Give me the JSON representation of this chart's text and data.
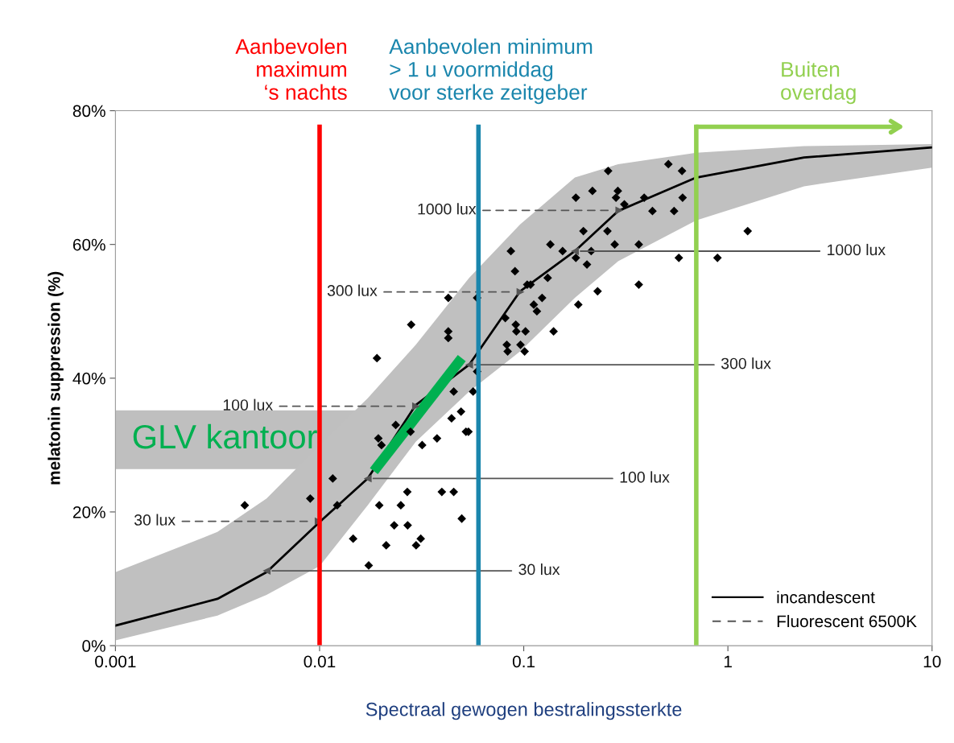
{
  "chart_data": {
    "type": "scatter",
    "xlabel": "Spectraal gewogen bestralingssterkte",
    "ylabel": "melatonin suppression (%)",
    "log": "x",
    "xlim": [
      0.001,
      10
    ],
    "xticks": [
      0.001,
      0.01,
      0.1,
      1,
      10
    ],
    "ylim": [
      0,
      80
    ],
    "yticks": [
      {
        "value": 0,
        "label": "0%"
      },
      {
        "value": 20,
        "label": "20%"
      },
      {
        "value": 40,
        "label": "40%"
      },
      {
        "value": 60,
        "label": "60%"
      },
      {
        "value": 80,
        "label": "80%"
      }
    ],
    "grid": false,
    "legend": "bottom right",
    "series": [
      {
        "name": "incandescent",
        "type": "line",
        "color": "#000000",
        "line_style": "solid",
        "x": [
          0.001,
          0.00316,
          0.0055,
          0.01,
          0.0172,
          0.0296,
          0.054,
          0.096,
          0.178,
          0.29,
          0.7,
          2.36,
          10
        ],
        "values": [
          3,
          7,
          11,
          18.5,
          25,
          36,
          42,
          53,
          59,
          65,
          70,
          73,
          74.5
        ],
        "lower": [
          0.8,
          4.5,
          7.6,
          11.9,
          21,
          30.5,
          38,
          44,
          52,
          57.5,
          63.6,
          68.7,
          71.5
        ],
        "upper": [
          11,
          17,
          22,
          30,
          37,
          45,
          55,
          63,
          70,
          72,
          73.7,
          74.7,
          75
        ]
      },
      {
        "name": "Fluorescent 6500K",
        "type": "scatter",
        "marker": "triangle",
        "color": "#555555",
        "line_style": "dashed",
        "x": [
          0.0099,
          0.0297,
          0.0964,
          0.294
        ],
        "values": [
          18.6,
          35.8,
          52.9,
          65.1
        ]
      },
      {
        "type": "scatter",
        "marker": "triangle",
        "color": "#555555",
        "line_style": "solid",
        "x": [
          0.0055,
          0.0172,
          0.054,
          0.178
        ],
        "values": [
          11.2,
          25,
          42,
          59
        ]
      },
      {
        "color": "#000000",
        "marker": "diamond",
        "x": [
          0.0043,
          0.009,
          0.0116,
          0.0122,
          0.0146,
          0.0174,
          0.0191,
          0.0194,
          0.0196,
          0.0201,
          0.0212,
          0.0232,
          0.0236,
          0.025,
          0.0269,
          0.027,
          0.0279,
          0.0281,
          0.0297,
          0.0313,
          0.0318,
          0.0376,
          0.0397,
          0.0427,
          0.0427,
          0.0427,
          0.0443,
          0.0454,
          0.0454,
          0.0493,
          0.0497,
          0.0521,
          0.0536,
          0.0565,
          0.0591,
          0.0591,
          0.0812,
          0.0826,
          0.0834,
          0.0865,
          0.0906,
          0.0914,
          0.092,
          0.0964,
          0.101,
          0.102,
          0.104,
          0.108,
          0.112,
          0.116,
          0.123,
          0.131,
          0.135,
          0.14,
          0.155,
          0.18,
          0.18,
          0.185,
          0.196,
          0.204,
          0.214,
          0.217,
          0.23,
          0.257,
          0.259,
          0.279,
          0.283,
          0.289,
          0.311,
          0.366,
          0.366,
          0.389,
          0.427,
          0.511,
          0.545,
          0.575,
          0.596,
          0.6,
          0.889,
          1.25
        ],
        "values": [
          21,
          22,
          25,
          21,
          16,
          12,
          43,
          31,
          21,
          30,
          15,
          18,
          33,
          21,
          23,
          18,
          32,
          48,
          15,
          16,
          30,
          31,
          23,
          52,
          47,
          46,
          34,
          23,
          38,
          35,
          19,
          32,
          32,
          38,
          41,
          52,
          49,
          45,
          44,
          59,
          56,
          48,
          47,
          45,
          44,
          47,
          54,
          54,
          51,
          50,
          52,
          55,
          60,
          47,
          59,
          67,
          58,
          51,
          62,
          57,
          59,
          68,
          53,
          62,
          71,
          60,
          67,
          68,
          66,
          60,
          54,
          67,
          65,
          72,
          65,
          58,
          71,
          67,
          58,
          62
        ]
      },
      {
        "type": "line",
        "color": "#00b050",
        "line_style": "solid",
        "x": [
          0.0191,
          0.048
        ],
        "values": [
          26.7,
          42.4
        ]
      }
    ],
    "annotations": [
      "GLV kantoor",
      {
        "text": "30 lux",
        "x": 0.0099,
        "y": 18.6
      },
      {
        "text": "100 lux",
        "x": 0.0297,
        "y": 35.8
      },
      {
        "text": "300 lux",
        "x": 0.0964,
        "y": 52.9
      },
      {
        "text": "1000 lux",
        "x": 0.294,
        "y": 65.1
      },
      {
        "text": "30 lux",
        "x": 0.0055,
        "y": 11.2
      },
      {
        "text": "100 lux",
        "x": 0.0172,
        "y": 25
      },
      {
        "text": "300 lux",
        "x": 0.054,
        "y": 42
      },
      {
        "text": "1000 lux",
        "x": 0.178,
        "y": 59
      }
    ],
    "ref_lines": [
      {
        "axis": "x",
        "value": 0.01,
        "label": "Aanbevolen\nmaximum\n‘s nachts",
        "color": "#ff0000"
      },
      {
        "axis": "x",
        "value": 0.06,
        "label": "Aanbevolen minimum\n> 1 u voormiddag\nvoor sterke zeitgeber",
        "color": "#1a86ad"
      },
      {
        "axis": "x",
        "value": 0.7,
        "label": "Buiten\noverdag",
        "color": "#92d050"
      }
    ]
  }
}
